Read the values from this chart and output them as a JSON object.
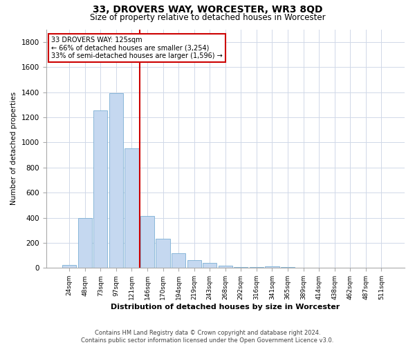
{
  "title": "33, DROVERS WAY, WORCESTER, WR3 8QD",
  "subtitle": "Size of property relative to detached houses in Worcester",
  "xlabel": "Distribution of detached houses by size in Worcester",
  "ylabel": "Number of detached properties",
  "footer_line1": "Contains HM Land Registry data © Crown copyright and database right 2024.",
  "footer_line2": "Contains public sector information licensed under the Open Government Licence v3.0.",
  "bar_labels": [
    "24sqm",
    "48sqm",
    "73sqm",
    "97sqm",
    "121sqm",
    "146sqm",
    "170sqm",
    "194sqm",
    "219sqm",
    "243sqm",
    "268sqm",
    "292sqm",
    "316sqm",
    "341sqm",
    "365sqm",
    "389sqm",
    "414sqm",
    "438sqm",
    "462sqm",
    "487sqm",
    "511sqm"
  ],
  "bar_values": [
    25,
    395,
    1255,
    1390,
    955,
    415,
    235,
    120,
    65,
    40,
    20,
    10,
    5,
    15,
    5,
    0,
    0,
    0,
    0,
    0,
    0
  ],
  "bar_color": "#c5d8f0",
  "bar_edgecolor": "#7bafd4",
  "grid_color": "#d0d8e8",
  "vline_x": 4.5,
  "vline_color": "#cc0000",
  "annotation_box_text": "33 DROVERS WAY: 125sqm\n← 66% of detached houses are smaller (3,254)\n33% of semi-detached houses are larger (1,596) →",
  "box_edgecolor": "#cc0000",
  "ylim": [
    0,
    1900
  ],
  "yticks": [
    0,
    200,
    400,
    600,
    800,
    1000,
    1200,
    1400,
    1600,
    1800
  ],
  "figsize": [
    6.0,
    5.0
  ],
  "dpi": 100
}
